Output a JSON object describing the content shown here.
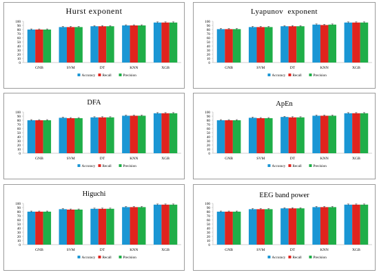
{
  "colors": {
    "accuracy": "#1a96d4",
    "recall": "#e0231d",
    "precision": "#1fae48",
    "axis": "#bfbfbf",
    "errorbar": "#222222"
  },
  "chart_data": [
    {
      "type": "bar",
      "title": "Hurst exponent",
      "categories": [
        "GNB",
        "SVM",
        "DT",
        "KNN",
        "XGB"
      ],
      "series": [
        {
          "name": "Accuracy",
          "values": [
            80,
            86,
            88,
            90,
            97
          ]
        },
        {
          "name": "Recall",
          "values": [
            80,
            86,
            88,
            90,
            97
          ]
        },
        {
          "name": "Precision",
          "values": [
            80,
            86,
            88,
            90,
            97
          ]
        }
      ],
      "yticks": [
        0,
        10,
        20,
        30,
        40,
        50,
        60,
        70,
        80,
        90,
        100
      ],
      "ylim": [
        0,
        100
      ],
      "grid": false,
      "legend": "bottom"
    },
    {
      "type": "bar",
      "title": "Lyapunov  exponent",
      "categories": [
        "GNB",
        "SVM",
        "DT",
        "KNN",
        "XGB"
      ],
      "series": [
        {
          "name": "Accuracy",
          "values": [
            81,
            86,
            88,
            92,
            97
          ]
        },
        {
          "name": "Recall",
          "values": [
            81,
            86,
            88,
            91,
            97
          ]
        },
        {
          "name": "Precision",
          "values": [
            81,
            86,
            88,
            92,
            97
          ]
        }
      ],
      "yticks": [
        0,
        10,
        20,
        30,
        40,
        50,
        60,
        70,
        80,
        90,
        100
      ],
      "ylim": [
        0,
        100
      ],
      "grid": false,
      "legend": "bottom"
    },
    {
      "type": "bar",
      "title": "DFA",
      "categories": [
        "GNB",
        "SVM",
        "DT",
        "KNN",
        "XGB"
      ],
      "series": [
        {
          "name": "Accuracy",
          "values": [
            80,
            86,
            87,
            91,
            97
          ]
        },
        {
          "name": "Recall",
          "values": [
            80,
            85,
            87,
            91,
            97
          ]
        },
        {
          "name": "Precision",
          "values": [
            80,
            85,
            87,
            91,
            97
          ]
        }
      ],
      "yticks": [
        0,
        10,
        20,
        30,
        40,
        50,
        60,
        70,
        80,
        90,
        100
      ],
      "ylim": [
        0,
        100
      ],
      "grid": false,
      "legend": "bottom"
    },
    {
      "type": "bar",
      "title": "ApEn",
      "categories": [
        "GNB",
        "SVM",
        "DT",
        "KNN",
        "XGB"
      ],
      "series": [
        {
          "name": "Accuracy",
          "values": [
            80,
            86,
            88,
            91,
            97
          ]
        },
        {
          "name": "Recall",
          "values": [
            80,
            85,
            87,
            91,
            97
          ]
        },
        {
          "name": "Precision",
          "values": [
            80,
            85,
            87,
            91,
            97
          ]
        }
      ],
      "yticks": [
        0,
        10,
        20,
        30,
        40,
        50,
        60,
        70,
        80,
        90,
        100
      ],
      "ylim": [
        0,
        100
      ],
      "grid": false,
      "legend": "bottom"
    },
    {
      "type": "bar",
      "title": "Higuchi",
      "categories": [
        "GNB",
        "SVM",
        "DT",
        "KNN",
        "XGB"
      ],
      "series": [
        {
          "name": "Accuracy",
          "values": [
            80,
            86,
            87,
            91,
            97
          ]
        },
        {
          "name": "Recall",
          "values": [
            80,
            85,
            87,
            91,
            97
          ]
        },
        {
          "name": "Precision",
          "values": [
            80,
            85,
            87,
            91,
            97
          ]
        }
      ],
      "yticks": [
        0,
        10,
        20,
        30,
        40,
        50,
        60,
        70,
        80,
        90,
        100
      ],
      "ylim": [
        0,
        100
      ],
      "grid": false,
      "legend": "bottom"
    },
    {
      "type": "bar",
      "title": "EEG band power",
      "categories": [
        "GNB",
        "SVM",
        "DT",
        "KNN",
        "XGB"
      ],
      "series": [
        {
          "name": "Accuracy",
          "values": [
            80,
            86,
            88,
            91,
            97
          ]
        },
        {
          "name": "Recall",
          "values": [
            80,
            86,
            88,
            91,
            97
          ]
        },
        {
          "name": "Precision",
          "values": [
            80,
            86,
            88,
            91,
            97
          ]
        }
      ],
      "yticks": [
        0,
        10,
        20,
        30,
        40,
        50,
        60,
        70,
        80,
        90,
        100
      ],
      "ylim": [
        0,
        100
      ],
      "grid": false,
      "legend": "bottom"
    }
  ]
}
